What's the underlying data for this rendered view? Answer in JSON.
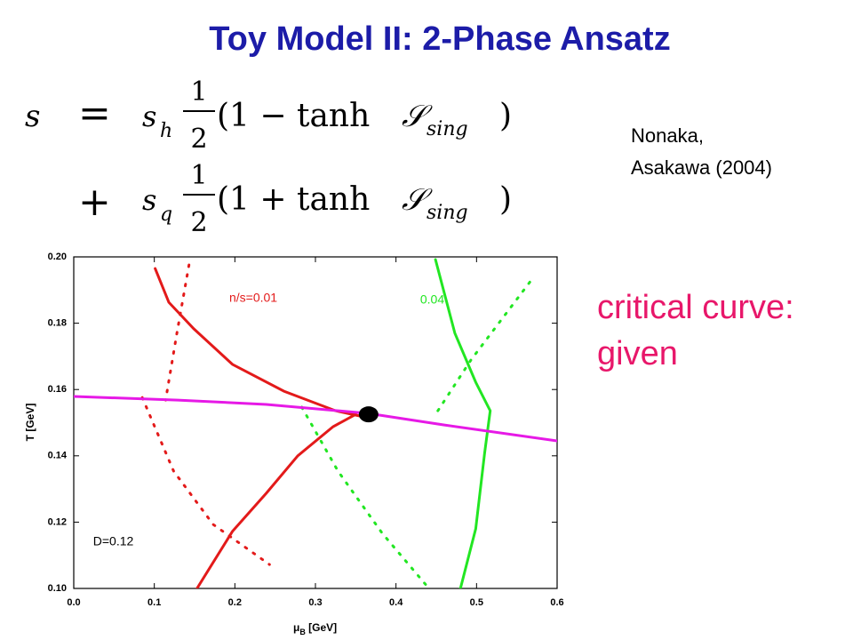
{
  "slide": {
    "title": "Toy Model II: 2-Phase Ansatz",
    "equation": {
      "lhs": "s",
      "rows": [
        {
          "op": "=",
          "sym": "s",
          "sub": "h",
          "num": "1",
          "den": "2",
          "body": "(1 − tanh",
          "ssym": "𝒮",
          "ssub": "sing",
          "close": ")"
        },
        {
          "op": "+",
          "sym": "s",
          "sub": "q",
          "num": "1",
          "den": "2",
          "body": "(1 + tanh",
          "ssym": "𝒮",
          "ssub": "sing",
          "close": ")"
        }
      ]
    },
    "citation": [
      "Nonaka,",
      "Asakawa (2004)"
    ],
    "note": [
      "critical curve:",
      "given"
    ]
  },
  "chart_data": {
    "type": "line",
    "x_label": "μ",
    "x_label_sub": "B",
    "x_label_unit": " [GeV]",
    "y_label": "T [GeV]",
    "xlim": [
      0.0,
      0.6
    ],
    "ylim": [
      0.1,
      0.2
    ],
    "xticks": [
      {
        "value": 0.0,
        "label": "0.0"
      },
      0.1,
      0.2,
      0.3,
      0.4,
      0.5,
      0.6
    ],
    "yticks": [
      {
        "value": 0.1,
        "label": "0.10"
      },
      0.12,
      0.14,
      0.16,
      0.18,
      {
        "value": 0.2,
        "label": "0.20"
      }
    ],
    "grid": false,
    "series": [
      {
        "color": "#e31a1a",
        "style": "solid",
        "x": [
          0.101,
          0.118,
          0.149,
          0.197,
          0.261,
          0.325,
          0.355
        ],
        "values": [
          0.1965,
          0.1863,
          0.1783,
          0.1676,
          0.1595,
          0.1536,
          0.152
        ]
      },
      {
        "color": "#e31a1a",
        "style": "solid",
        "x": [
          0.153,
          0.197,
          0.239,
          0.278,
          0.322,
          0.35
        ],
        "values": [
          0.1,
          0.1172,
          0.1287,
          0.14,
          0.1488,
          0.1525
        ]
      },
      {
        "color": "#e31a1a",
        "style": "dotted",
        "x": [
          0.143,
          0.128,
          0.114,
          null,
          0.085,
          0.124,
          0.173,
          0.243
        ],
        "values": [
          0.1976,
          0.177,
          0.1568,
          null,
          0.1576,
          0.1354,
          0.1193,
          0.1072
        ]
      },
      {
        "color": "#22e622",
        "style": "solid",
        "x": [
          0.449,
          0.473,
          0.499,
          0.517,
          0.51,
          0.499,
          0.48
        ],
        "values": [
          0.1992,
          0.177,
          0.1622,
          0.1536,
          0.1408,
          0.118,
          0.1
        ]
      },
      {
        "color": "#22e622",
        "style": "dotted",
        "x": [
          0.452,
          0.493,
          0.568,
          null,
          0.283,
          0.328,
          0.383,
          0.441
        ],
        "values": [
          0.1536,
          0.1689,
          0.193,
          null,
          0.1547,
          0.1354,
          0.1166,
          0.1
        ]
      },
      {
        "color": "#e619e6",
        "style": "solid",
        "x": [
          0.0,
          0.129,
          0.239,
          0.366,
          0.46,
          0.6
        ],
        "values": [
          0.1579,
          0.1568,
          0.1555,
          0.1528,
          0.1493,
          0.1445
        ]
      },
      {
        "color": "#000000",
        "marker": "dot",
        "x": [
          0.366
        ],
        "values": [
          0.1525
        ]
      }
    ],
    "annotations": [
      {
        "text": "n/s=0.01",
        "x": 0.193,
        "y": 0.1874,
        "color": "#e31a1a"
      },
      {
        "text": "0.04",
        "x": 0.43,
        "y": 0.1869,
        "color": "#22e622"
      },
      {
        "text": "D=0.12",
        "x": 0.024,
        "y": 0.114,
        "color": "#000000"
      }
    ]
  }
}
